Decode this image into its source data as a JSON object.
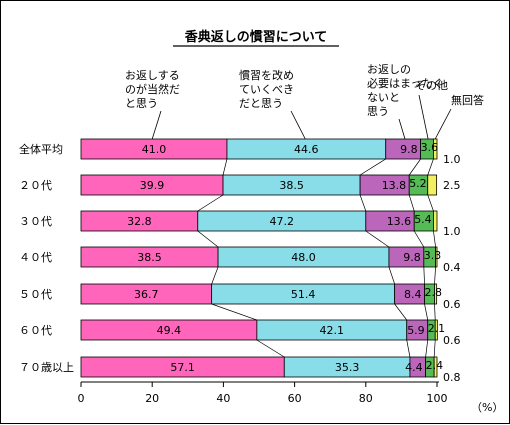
{
  "chart_data": {
    "type": "bar",
    "orientation": "horizontal",
    "stacked": true,
    "title": "香典返しの慣習について",
    "unit_label": "（%）",
    "categories": [
      "全体平均",
      "２０代",
      "３０代",
      "４０代",
      "５０代",
      "６０代",
      "７０歳以上"
    ],
    "series": [
      {
        "name": "お返しするのが当然だと思う",
        "values": [
          41.0,
          39.9,
          32.8,
          38.5,
          36.7,
          49.4,
          57.1
        ],
        "color": "#ff66bb"
      },
      {
        "name": "慣習を改めていくべきだと思う",
        "values": [
          44.6,
          38.5,
          47.2,
          48.0,
          51.4,
          42.1,
          35.3
        ],
        "color": "#88dde8"
      },
      {
        "name": "お返しの必要はまったくないと思う",
        "values": [
          9.8,
          13.8,
          13.6,
          9.8,
          8.4,
          5.9,
          4.4
        ],
        "color": "#bb66bb"
      },
      {
        "name": "その他",
        "values": [
          3.6,
          5.2,
          5.4,
          3.3,
          2.8,
          2.1,
          2.4
        ],
        "color": "#55bb55"
      },
      {
        "name": "無回答",
        "values": [
          1.0,
          2.5,
          1.0,
          0.4,
          0.6,
          0.6,
          0.8
        ],
        "color": "#f0f060"
      }
    ],
    "value_labels": [
      [
        "41.0",
        "44.6",
        "9.8",
        "3.6",
        "1.0"
      ],
      [
        "39.9",
        "38.5",
        "13.8",
        "5.2",
        "2.5"
      ],
      [
        "32.8",
        "47.2",
        "13.6",
        "5.4",
        "1.0"
      ],
      [
        "38.5",
        "48.0",
        "9.8",
        "3.3",
        "0.4"
      ],
      [
        "36.7",
        "51.4",
        "8.4",
        "2.8",
        "0.6"
      ],
      [
        "49.4",
        "42.1",
        "5.9",
        "2.1",
        "0.6"
      ],
      [
        "57.1",
        "35.3",
        "4.4",
        "2.4",
        "0.8"
      ]
    ],
    "legend_lines": [
      [
        "お返しする",
        "のが当然だ",
        "と思う"
      ],
      [
        "慣習を改め",
        "ていくべき",
        "だと思う"
      ],
      [
        "お返しの",
        "必要はまったく",
        "ないと",
        "思う"
      ],
      [
        "その他"
      ],
      [
        "無回答"
      ]
    ],
    "xlim": [
      0,
      100
    ],
    "xticks": [
      "0",
      "20",
      "40",
      "60",
      "80",
      "100"
    ]
  }
}
